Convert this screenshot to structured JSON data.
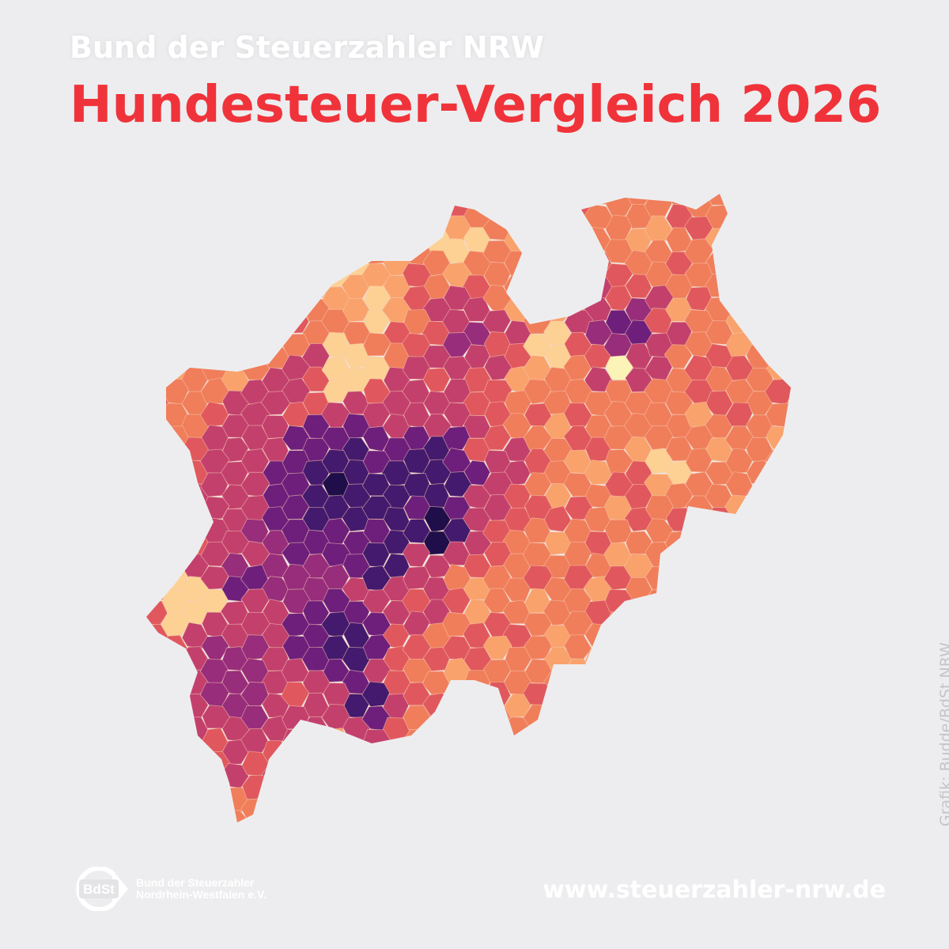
{
  "header": {
    "subtitle": "Bund der Steuerzahler NRW",
    "title": "Hundesteuer-Vergleich 2026"
  },
  "map": {
    "region": "Nordrhein-Westfalen",
    "type": "choropleth",
    "palette": [
      "#fcf4b6",
      "#fdd194",
      "#f9a26c",
      "#f07e5b",
      "#e0585d",
      "#c3406d",
      "#982d7b",
      "#6e1f7c",
      "#441a6e",
      "#1f0e4a"
    ],
    "border_color": "#f6c9b0"
  },
  "credit": "Grafik: Budde/BdSt NRW",
  "footer": {
    "logo_mark": "BdSt",
    "logo_line1": "Bund der Steuerzahler",
    "logo_line2": "Nordrhein-Westfalen e.V.",
    "url": "www.steuerzahler-nrw.de"
  }
}
